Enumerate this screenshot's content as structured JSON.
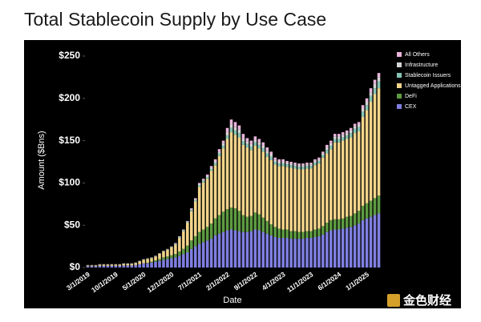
{
  "chart_data": {
    "type": "stacked_bar",
    "title": "Total Stablecoin Supply by Use Case",
    "x_label": "Date",
    "y_label": "Amount ($Bns)",
    "watermark": "金色财经",
    "categories": [
      "3/1/2019",
      null,
      null,
      null,
      null,
      null,
      null,
      "10/1/2019",
      null,
      null,
      null,
      null,
      null,
      null,
      "5/1/2020",
      null,
      null,
      null,
      null,
      null,
      null,
      "12/1/2020",
      null,
      null,
      null,
      null,
      null,
      null,
      "7/1/2021",
      null,
      null,
      null,
      null,
      null,
      null,
      "2/1/2022",
      null,
      null,
      null,
      null,
      null,
      null,
      "9/1/2022",
      null,
      null,
      null,
      null,
      null,
      null,
      "4/1/2023",
      null,
      null,
      null,
      null,
      null,
      null,
      "11/1/2023",
      null,
      null,
      null,
      null,
      null,
      null,
      "6/1/2024",
      null,
      null,
      null,
      null,
      null,
      null,
      "1/1/2025",
      null,
      null,
      null
    ],
    "series": [
      {
        "name": "CEX",
        "color": "#7f7fe0",
        "values": [
          1.5,
          1.5,
          1.5,
          2,
          2,
          2,
          2,
          2,
          2,
          2.5,
          2.5,
          2.5,
          3,
          4,
          5,
          5,
          6,
          7,
          8,
          9,
          10,
          11,
          12,
          14,
          16,
          18,
          22,
          25,
          28,
          30,
          32,
          34,
          38,
          40,
          42,
          44,
          45,
          44,
          43,
          42,
          42,
          43,
          45,
          44,
          42,
          40,
          38,
          36,
          35,
          35,
          35,
          34,
          34,
          34,
          34,
          35,
          35,
          36,
          37,
          39,
          42,
          44,
          45,
          45,
          46,
          47,
          48,
          50,
          52,
          56,
          58,
          60,
          62,
          64
        ]
      },
      {
        "name": "DeFi",
        "color": "#5e9a42",
        "values": [
          0,
          0,
          0,
          0,
          0,
          0,
          0,
          0,
          0,
          0,
          0,
          0,
          0,
          0,
          0,
          0.5,
          1,
          1.5,
          2,
          3,
          3,
          3.5,
          4,
          5,
          6,
          8,
          10,
          12,
          14,
          15,
          16,
          18,
          20,
          22,
          24,
          25,
          26,
          26,
          24,
          20,
          18,
          18,
          20,
          19,
          17,
          15,
          13,
          12,
          11,
          10,
          10,
          9,
          9,
          8,
          8,
          8,
          8,
          9,
          9,
          10,
          11,
          12,
          12,
          12,
          12,
          13,
          13,
          14,
          15,
          17,
          18,
          19,
          20,
          21
        ]
      },
      {
        "name": "Untagged Applications",
        "color": "#f2d48a",
        "values": [
          0.8,
          0.8,
          0.8,
          1.3,
          1.3,
          1.3,
          1.3,
          1.3,
          1.3,
          1.8,
          1.8,
          1.8,
          2.3,
          3.1,
          4.1,
          4.6,
          4.1,
          4.6,
          6.1,
          7.1,
          8.1,
          9.6,
          11,
          16,
          21,
          27,
          34.5,
          41.5,
          53.5,
          55.5,
          57,
          62.5,
          63,
          70,
          75,
          83,
          89,
          87,
          87,
          83,
          82,
          78,
          79,
          78,
          78,
          76,
          76,
          74,
          74,
          75,
          74,
          75,
          74,
          74,
          74,
          74,
          74,
          76,
          77,
          81,
          82,
          84,
          91,
          91,
          92,
          92,
          93,
          95,
          94,
          105,
          110,
          117,
          123,
          127
        ]
      },
      {
        "name": "Stablecoin Issuers",
        "color": "#86c4b4",
        "values": [
          0.3,
          0.3,
          0.3,
          0.3,
          0.3,
          0.3,
          0.3,
          0.3,
          0.3,
          0.3,
          0.3,
          0.3,
          0.3,
          0.5,
          0.5,
          0.5,
          0.5,
          0.5,
          0.5,
          0.5,
          0.5,
          0.5,
          1,
          1,
          1,
          1,
          1.5,
          1.5,
          2,
          2,
          2,
          2,
          2.5,
          3,
          3,
          4,
          5,
          5,
          5,
          4,
          4,
          4,
          4,
          4,
          4,
          4,
          4,
          3,
          3,
          3,
          3,
          3,
          3,
          3,
          3,
          3,
          3,
          3,
          3,
          3,
          4,
          4,
          4,
          4,
          4,
          4,
          5,
          5,
          5,
          6,
          6,
          7,
          7,
          8
        ]
      },
      {
        "name": "Infrastructure",
        "color": "#d4d4d4",
        "values": [
          0.2,
          0.2,
          0.2,
          0.2,
          0.2,
          0.2,
          0.2,
          0.2,
          0.2,
          0.2,
          0.2,
          0.2,
          0.2,
          0.2,
          0.2,
          0.2,
          0.2,
          0.2,
          0.2,
          0.2,
          0.2,
          0.2,
          0.5,
          0.5,
          0.5,
          0.5,
          1,
          1,
          1,
          1,
          1,
          1.5,
          2,
          2,
          3,
          4,
          4,
          4,
          4,
          4,
          3,
          3,
          3,
          3,
          3,
          3,
          3,
          2,
          2,
          2,
          2,
          2,
          2,
          2,
          2,
          2,
          2,
          2,
          2,
          2,
          3,
          3,
          3,
          3,
          3,
          3,
          3,
          3,
          3,
          4,
          4,
          4,
          5,
          5
        ]
      },
      {
        "name": "All Others",
        "color": "#eab4dc",
        "values": [
          0.2,
          0.2,
          0.2,
          0.2,
          0.2,
          0.2,
          0.2,
          0.2,
          0.2,
          0.2,
          0.2,
          0.2,
          0.2,
          0.2,
          0.2,
          0.2,
          0.2,
          0.2,
          0.2,
          0.2,
          0.2,
          0.2,
          0.5,
          0.5,
          0.5,
          0.5,
          1,
          1,
          1.5,
          1.5,
          2,
          2,
          2.5,
          3,
          3,
          5,
          6,
          6,
          5,
          5,
          4,
          4,
          4,
          4,
          4,
          4,
          3,
          3,
          3,
          3,
          2,
          2,
          2,
          2,
          2,
          2,
          2,
          2,
          2,
          2,
          3,
          3,
          3,
          3,
          3,
          3,
          3,
          3,
          3,
          4,
          4,
          5,
          5,
          5
        ]
      }
    ],
    "ylim": [
      0,
      250
    ],
    "yticks": [
      {
        "value": 0,
        "label": "$0"
      },
      {
        "value": 50,
        "label": "$50"
      },
      {
        "value": 100,
        "label": "$100"
      },
      {
        "value": 150,
        "label": "$150"
      },
      {
        "value": 200,
        "label": "$200"
      },
      {
        "value": 250,
        "label": "$250"
      }
    ],
    "grid": false,
    "legend": "top-right"
  }
}
